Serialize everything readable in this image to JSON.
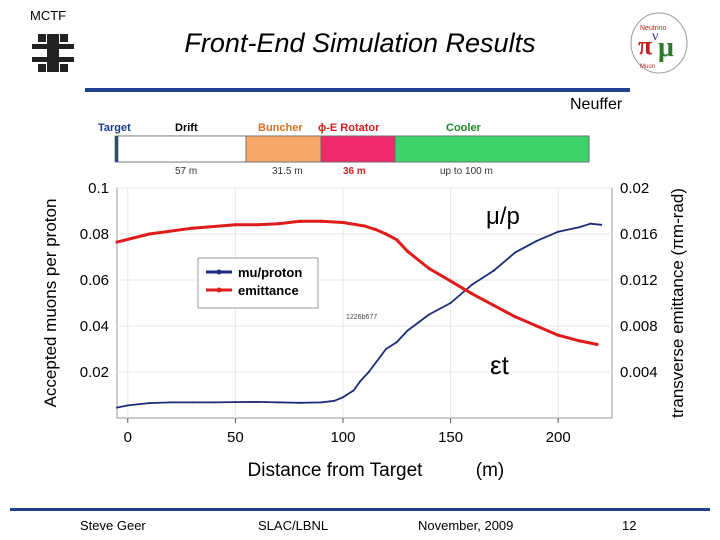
{
  "slide": {
    "org_label": "MCTF",
    "title": "Front-End Simulation Results",
    "author": "Neuffer",
    "footer": {
      "presenter": "Steve Geer",
      "lab": "SLAC/LBNL",
      "date": "November, 2009",
      "page": "12"
    },
    "logo_lettering": [
      "Neutrino Factory",
      "Muon Collider"
    ]
  },
  "lattice": {
    "segments": [
      {
        "name": "Target",
        "length_label": "",
        "color": "#ffffff",
        "label_color": "#1b3b8f"
      },
      {
        "name": "Drift",
        "length_label": "57 m",
        "color": "#ffffff",
        "label_color": "#000000"
      },
      {
        "name": "Buncher",
        "length_label": "31.5 m",
        "color": "#f7a66a",
        "label_color": "#e07020"
      },
      {
        "name": "ϕ-E Rotator",
        "length_label": "36 m",
        "color": "#ee2a6a",
        "label_color": "#d02020"
      },
      {
        "name": "Cooler",
        "length_label": "up to 100 m",
        "color": "#3dd36a",
        "label_color": "#1a8a2a"
      }
    ]
  },
  "chart_data": {
    "type": "line",
    "xlabel": "Distance from Target",
    "xunit": "(m)",
    "ylabel": "Accepted muons per proton",
    "y2label": "transverse emittance (πm-rad)",
    "xlim": [
      -5,
      225
    ],
    "ylim": [
      0,
      0.1
    ],
    "y2lim": [
      0,
      0.02
    ],
    "xticks": [
      0,
      50,
      100,
      150,
      200
    ],
    "yticks": [
      "0.02",
      "0.04",
      "0.06",
      "0.08",
      "0.1"
    ],
    "y2ticks": [
      "0.004",
      "0.008",
      "0.012",
      "0.016",
      "0.02"
    ],
    "legend": {
      "placement": "center-left"
    },
    "annotations": [
      "μ/p",
      "εt",
      "1226b677"
    ],
    "series": [
      {
        "name": "mu/proton",
        "axis": "left",
        "color": "#1c2a7a",
        "x": [
          -5,
          0,
          10,
          20,
          30,
          40,
          50,
          60,
          70,
          80,
          90,
          96,
          100,
          105,
          108,
          112,
          120,
          125,
          130,
          140,
          150,
          160,
          170,
          180,
          190,
          200,
          210,
          215,
          220
        ],
        "y": [
          0.0045,
          0.0055,
          0.0065,
          0.0068,
          0.0068,
          0.0068,
          0.0069,
          0.007,
          0.0068,
          0.0066,
          0.0068,
          0.0075,
          0.009,
          0.012,
          0.016,
          0.02,
          0.03,
          0.033,
          0.038,
          0.045,
          0.05,
          0.058,
          0.064,
          0.072,
          0.077,
          0.081,
          0.083,
          0.0845,
          0.084
        ]
      },
      {
        "name": "emittance",
        "axis": "right",
        "color": "#e01b1b",
        "x": [
          -5,
          10,
          30,
          50,
          60,
          70,
          80,
          90,
          100,
          110,
          115,
          120,
          125,
          130,
          140,
          150,
          160,
          170,
          180,
          190,
          200,
          210,
          218
        ],
        "y": [
          0.0153,
          0.016,
          0.0165,
          0.0168,
          0.0168,
          0.0169,
          0.0171,
          0.0171,
          0.017,
          0.0167,
          0.0164,
          0.016,
          0.0155,
          0.0145,
          0.013,
          0.0119,
          0.0108,
          0.0098,
          0.0088,
          0.008,
          0.0072,
          0.0067,
          0.0064
        ]
      }
    ]
  }
}
